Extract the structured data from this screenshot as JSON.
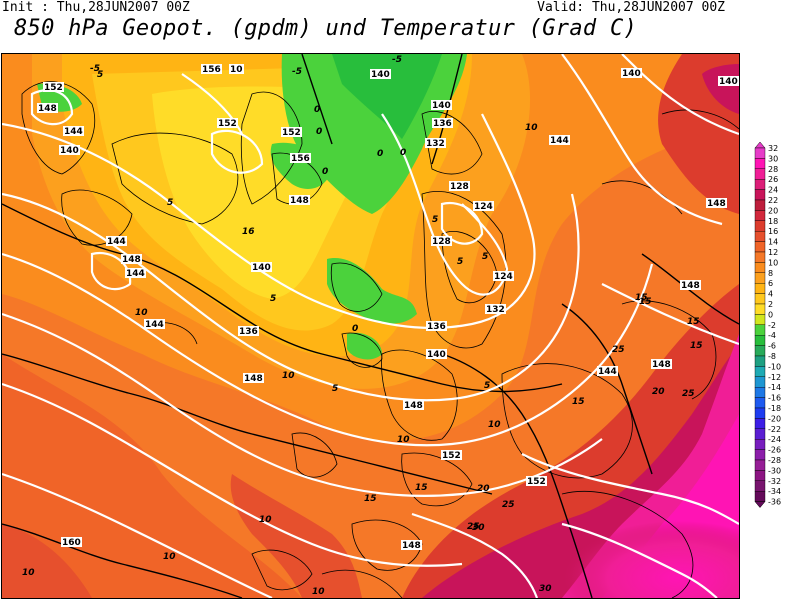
{
  "header": {
    "init": "Init : Thu,28JUN2007 00Z",
    "valid": "Valid: Thu,28JUN2007 00Z",
    "title": "850 hPa Geopot. (gpdm) und Temperatur (Grad C)"
  },
  "legend": {
    "ticks": [
      "32",
      "30",
      "28",
      "26",
      "24",
      "22",
      "20",
      "18",
      "16",
      "14",
      "12",
      "10",
      "8",
      "6",
      "4",
      "2",
      "0",
      "-2",
      "-4",
      "-6",
      "-8",
      "-10",
      "-12",
      "-14",
      "-16",
      "-18",
      "-20",
      "-22",
      "-24",
      "-26",
      "-28",
      "-30",
      "-32",
      "-34",
      "-36"
    ],
    "colors": [
      "#e63cc8",
      "#ff14b4",
      "#f01e96",
      "#dc1e78",
      "#c8145a",
      "#be1e3c",
      "#d2283c",
      "#dc3c2d",
      "#e6502d",
      "#f06428",
      "#f57828",
      "#fa8c1e",
      "#fca01e",
      "#ffb414",
      "#ffc81e",
      "#ffdc28",
      "#d2e61e",
      "#4bd23c",
      "#28be3c",
      "#28aa5a",
      "#1ea082",
      "#1eaab4",
      "#1e96d2",
      "#1e78e6",
      "#1e5af0",
      "#1e3cf0",
      "#3c1ee6",
      "#5a1ed2",
      "#781ebe",
      "#8c1eaa",
      "#961e96",
      "#8c1482",
      "#78146e",
      "#640a5a"
    ]
  },
  "map": {
    "geopotential_labels": [
      "152",
      "148",
      "144",
      "140",
      "156",
      "10",
      "152",
      "140",
      "140",
      "136",
      "132",
      "152",
      "156",
      "148",
      "128",
      "124",
      "128",
      "124",
      "132",
      "136",
      "140",
      "144",
      "148",
      "144",
      "140",
      "136",
      "144",
      "148",
      "152",
      "148",
      "160",
      "140",
      "144",
      "140",
      "148",
      "148",
      "144",
      "148",
      "152",
      "148"
    ],
    "temperature_labels": [
      "-5",
      "-5",
      "-5",
      "0",
      "0",
      "0",
      "0",
      "0",
      "0",
      "5",
      "5",
      "5",
      "5",
      "5",
      "5",
      "5",
      "5",
      "10",
      "10",
      "10",
      "10",
      "10",
      "10",
      "10",
      "15",
      "15",
      "15",
      "15",
      "15",
      "15",
      "15",
      "20",
      "20",
      "25",
      "25",
      "25",
      "25",
      "30",
      "30",
      "10",
      "10",
      "16"
    ]
  }
}
